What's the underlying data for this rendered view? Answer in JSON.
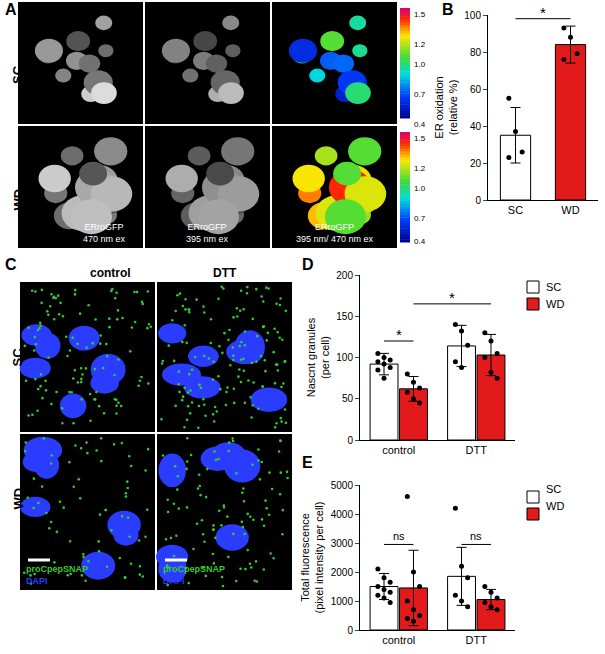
{
  "panel_labels": [
    "A",
    "B",
    "C",
    "D",
    "E"
  ],
  "panel_a": {
    "rows": [
      "SC",
      "WD"
    ],
    "image_labels": [
      [
        "ERroGFP",
        "470 nm ex"
      ],
      [
        "ERroGFP",
        "395 nm ex"
      ],
      [
        "ERroGFP",
        "395 nm/ 470 nm ex"
      ]
    ],
    "colorbar": {
      "range": [
        0.4,
        1.5
      ],
      "ticks": [
        1.5,
        1.2,
        {
          "value": 1,
          "label": "1.0"
        },
        0.7,
        0.4
      ]
    }
  },
  "panel_c": {
    "columns": [
      "control",
      "DTT"
    ],
    "rows": [
      "SC",
      "WD"
    ],
    "channels": [
      {
        "name": "proCpepSNAP",
        "color": "#33cc33"
      },
      {
        "name": "DAPI",
        "color": "#2a3cff"
      }
    ]
  },
  "chart_data": [
    {
      "type": "bar",
      "categories": [
        "SC",
        "WD"
      ],
      "values": [
        35,
        84
      ],
      "errors": [
        15,
        10
      ],
      "points": [
        [
          55,
          37,
          26,
          23
        ],
        [
          93,
          88,
          79,
          76
        ]
      ],
      "colors": [
        "#ffffff",
        "#e31a1c"
      ],
      "ylabel": [
        "ER oxidation",
        "(relative %)"
      ],
      "ylim": [
        0,
        100
      ],
      "yticks": [
        0,
        20,
        40,
        60,
        80,
        100
      ],
      "grid": false,
      "significance": [
        {
          "text": "*",
          "between": [
            "SC",
            "WD"
          ],
          "y": 98
        }
      ]
    },
    {
      "type": "bar",
      "categories": [
        "control",
        "DTT"
      ],
      "ylabel": [
        "Nascnt granules",
        "(per cell)"
      ],
      "ylim": [
        0,
        200
      ],
      "yticks": [
        0,
        50,
        100,
        150,
        200
      ],
      "grid": false,
      "legend": "right",
      "series": [
        {
          "name": "SC",
          "color": "#ffffff",
          "values": [
            92,
            114
          ],
          "errors": [
            13,
            25
          ],
          "points": [
            [
              105,
              100,
              97,
              95,
              92,
              88,
              85,
              75
            ],
            [
              140,
              132,
              115,
              95,
              88
            ]
          ]
        },
        {
          "name": "WD",
          "color": "#e31a1c",
          "values": [
            62,
            103
          ],
          "errors": [
            15,
            25
          ],
          "points": [
            [
              80,
              70,
              63,
              58,
              50,
              45
            ],
            [
              130,
              120,
              105,
              100,
              82,
              75
            ]
          ]
        }
      ],
      "significance": [
        {
          "text": "*",
          "between": [
            {
              "category": "control",
              "series": "SC"
            },
            {
              "category": "control",
              "series": "WD"
            }
          ],
          "y": 120
        },
        {
          "text": "*",
          "between": [
            {
              "category": "control",
              "series": "WD"
            },
            {
              "category": "DTT",
              "series": "WD"
            }
          ],
          "y": 165
        }
      ]
    },
    {
      "type": "bar",
      "categories": [
        "control",
        "DTT"
      ],
      "ylabel": [
        "Total fluorescence",
        "(pixel intensity per cell)"
      ],
      "ylim": [
        0,
        5000
      ],
      "yticks": [
        0,
        1000,
        2000,
        3000,
        4000,
        5000
      ],
      "grid": false,
      "legend": "right",
      "series": [
        {
          "name": "SC",
          "color": "#ffffff",
          "values": [
            1500,
            1850
          ],
          "errors": [
            450,
            1000
          ],
          "points": [
            [
              2100,
              1800,
              1650,
              1500,
              1400,
              1300,
              1200,
              1100,
              950
            ],
            [
              4200,
              2200,
              1800,
              1200,
              1000,
              800
            ]
          ]
        },
        {
          "name": "WD",
          "color": "#e31a1c",
          "values": [
            1450,
            1050
          ],
          "errors": [
            1300,
            350
          ],
          "points": [
            [
              4600,
              2000,
              1500,
              1000,
              700,
              500,
              400,
              300
            ],
            [
              1500,
              1300,
              1100,
              950,
              800,
              700
            ]
          ]
        }
      ],
      "significance": [
        {
          "text": "ns",
          "between": [
            {
              "category": "control",
              "series": "SC"
            },
            {
              "category": "control",
              "series": "WD"
            }
          ],
          "y": 2950
        },
        {
          "text": "ns",
          "between": [
            {
              "category": "DTT",
              "series": "SC"
            },
            {
              "category": "DTT",
              "series": "WD"
            }
          ],
          "y": 2950
        }
      ]
    }
  ]
}
